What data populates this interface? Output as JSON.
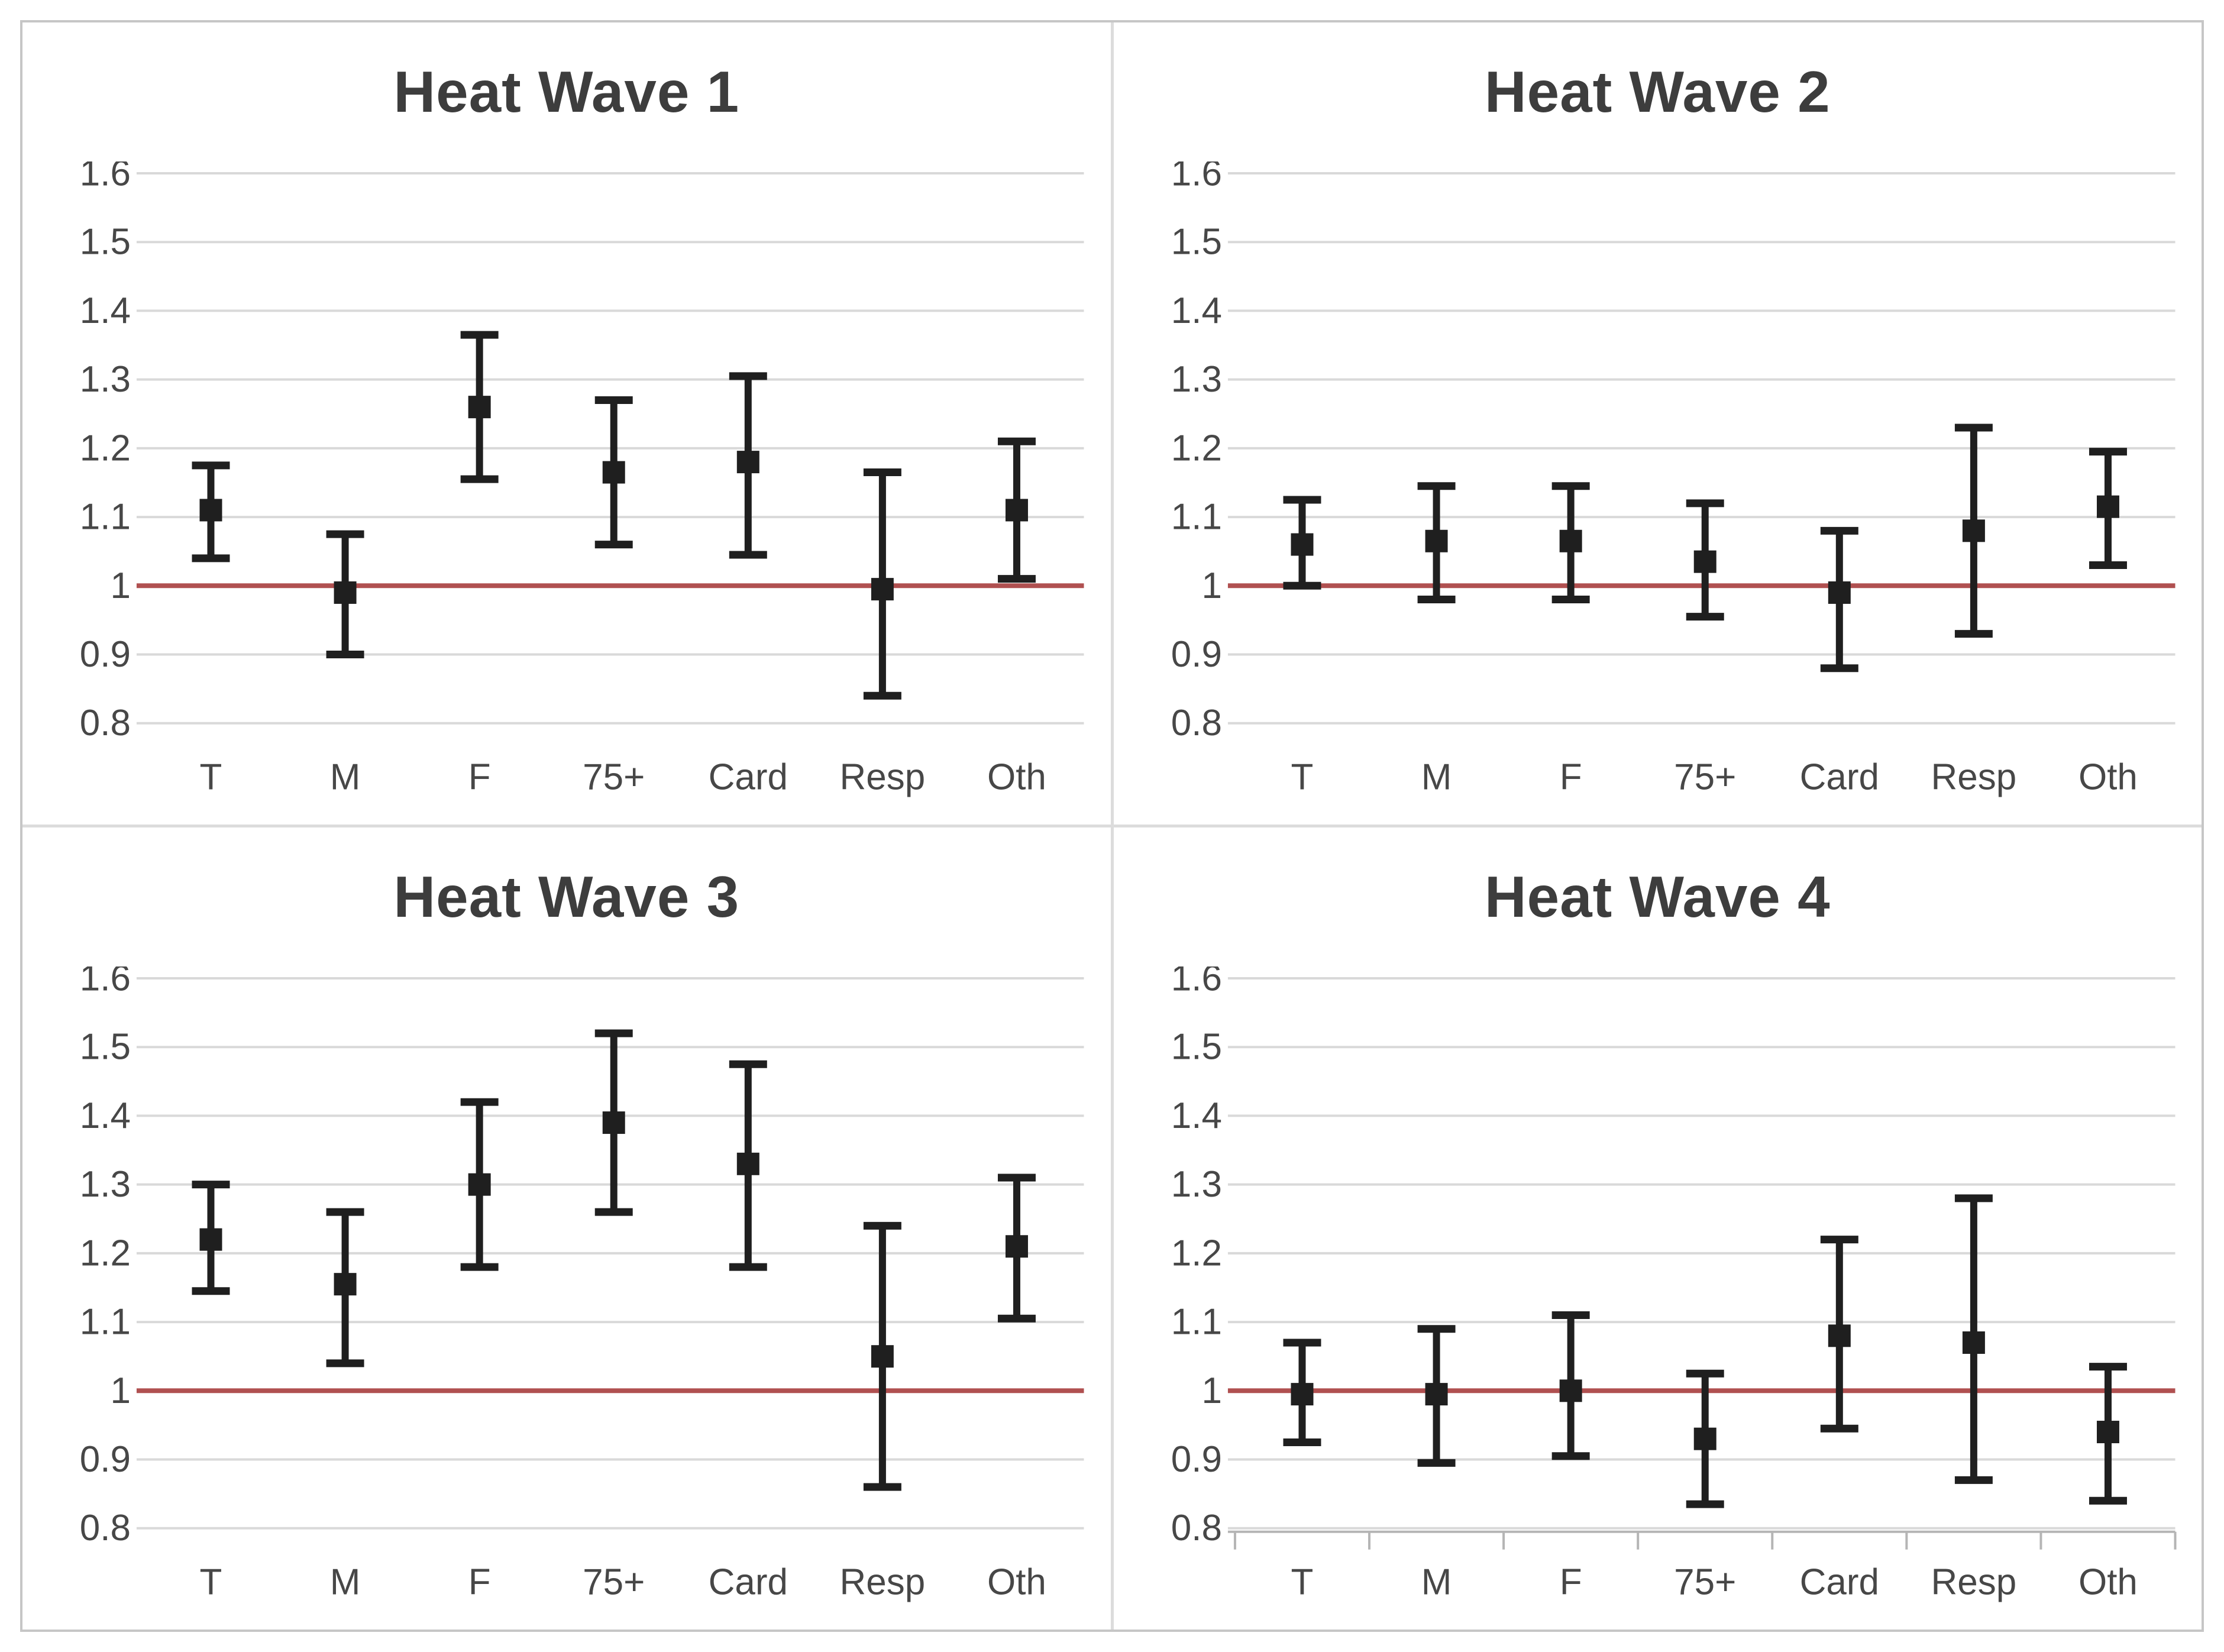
{
  "figure": {
    "layout": "2x2-grid",
    "border_color": "#c6c6c6",
    "divider_color": "#dcdcdc",
    "background": "#ffffff"
  },
  "styles": {
    "grid_color": "#d9d9d9",
    "ref_line_color": "#b05050",
    "bar_color": "#1f1f1f",
    "title_color": "#3d3d3d",
    "label_color": "#474747",
    "axis_color": "#b5b5b5"
  },
  "chart_data": [
    {
      "type": "scatter",
      "subtype": "error-bar",
      "title": "Heat Wave 1",
      "categories": [
        "T",
        "M",
        "F",
        "75+",
        "Card",
        "Resp",
        "Oth"
      ],
      "ylim": [
        0.8,
        1.6
      ],
      "yticks": [
        "1.6",
        "1.5",
        "1.4",
        "1.3",
        "1.2",
        "1.1",
        "1",
        "0.9",
        "0.8"
      ],
      "grid": true,
      "legend": "none",
      "ref_line": 1,
      "category_axis_ticks": false,
      "series": [
        {
          "values": [
            1.11,
            0.99,
            1.26,
            1.165,
            1.18,
            0.995,
            1.11
          ],
          "ci_low": [
            1.04,
            0.9,
            1.155,
            1.06,
            1.045,
            0.84,
            1.01
          ],
          "ci_high": [
            1.175,
            1.075,
            1.365,
            1.27,
            1.305,
            1.165,
            1.21
          ]
        }
      ]
    },
    {
      "type": "scatter",
      "subtype": "error-bar",
      "title": "Heat Wave 2",
      "categories": [
        "T",
        "M",
        "F",
        "75+",
        "Card",
        "Resp",
        "Oth"
      ],
      "ylim": [
        0.8,
        1.6
      ],
      "yticks": [
        "1.6",
        "1.5",
        "1.4",
        "1.3",
        "1.2",
        "1.1",
        "1",
        "0.9",
        "0.8"
      ],
      "grid": true,
      "legend": "none",
      "ref_line": 1,
      "category_axis_ticks": false,
      "series": [
        {
          "values": [
            1.06,
            1.065,
            1.065,
            1.035,
            0.99,
            1.08,
            1.115
          ],
          "ci_low": [
            1.0,
            0.98,
            0.98,
            0.955,
            0.88,
            0.93,
            1.03
          ],
          "ci_high": [
            1.125,
            1.145,
            1.145,
            1.12,
            1.08,
            1.23,
            1.195
          ]
        }
      ]
    },
    {
      "type": "scatter",
      "subtype": "error-bar",
      "title": "Heat Wave 3",
      "categories": [
        "T",
        "M",
        "F",
        "75+",
        "Card",
        "Resp",
        "Oth"
      ],
      "ylim": [
        0.8,
        1.6
      ],
      "yticks": [
        "1.6",
        "1.5",
        "1.4",
        "1.3",
        "1.2",
        "1.1",
        "1",
        "0.9",
        "0.8"
      ],
      "grid": true,
      "legend": "none",
      "ref_line": 1,
      "category_axis_ticks": false,
      "series": [
        {
          "values": [
            1.22,
            1.155,
            1.3,
            1.39,
            1.33,
            1.05,
            1.21
          ],
          "ci_low": [
            1.145,
            1.04,
            1.18,
            1.26,
            1.18,
            0.86,
            1.105
          ],
          "ci_high": [
            1.3,
            1.26,
            1.42,
            1.52,
            1.475,
            1.24,
            1.31
          ]
        }
      ]
    },
    {
      "type": "scatter",
      "subtype": "error-bar",
      "title": "Heat Wave 4",
      "categories": [
        "T",
        "M",
        "F",
        "75+",
        "Card",
        "Resp",
        "Oth"
      ],
      "ylim": [
        0.8,
        1.6
      ],
      "yticks": [
        "1.6",
        "1.5",
        "1.4",
        "1.3",
        "1.2",
        "1.1",
        "1",
        "0.9",
        "0.8"
      ],
      "grid": true,
      "legend": "none",
      "ref_line": 1,
      "category_axis_ticks": true,
      "series": [
        {
          "values": [
            0.995,
            0.995,
            1.0,
            0.93,
            1.08,
            1.07,
            0.94
          ],
          "ci_low": [
            0.925,
            0.895,
            0.905,
            0.835,
            0.945,
            0.87,
            0.84
          ],
          "ci_high": [
            1.07,
            1.09,
            1.11,
            1.025,
            1.22,
            1.28,
            1.035
          ]
        }
      ]
    }
  ]
}
